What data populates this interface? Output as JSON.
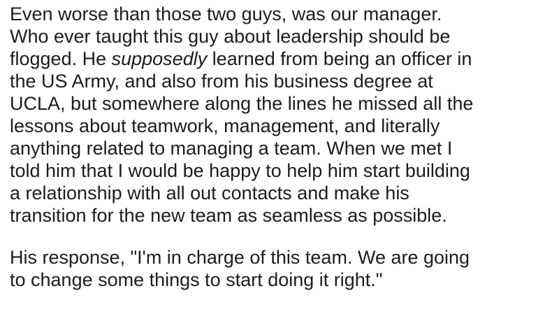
{
  "post": {
    "paragraph1": {
      "line1": "Even worse than those two guys, was our manager.",
      "line2": "Who ever taught this guy about leadership should be",
      "line3_pre": "flogged. He ",
      "line3_em": "supposedly",
      "line3_post": " learned from being an officer in",
      "line4": "the US Army, and also from his business degree at",
      "line5": "UCLA, but somewhere along the lines he missed all the",
      "line6": "lessons about teamwork, management, and literally",
      "line7": "anything related to managing a team. When we met I",
      "line8": "told him that I would be happy to help him start building",
      "line9": "a relationship with all out contacts and make his",
      "line10": "transition for the new team as seamless as possible."
    },
    "paragraph2": {
      "line1": "His response, \"I'm in charge of this team. We are going",
      "line2": "to change some things to start doing it right.\""
    }
  }
}
